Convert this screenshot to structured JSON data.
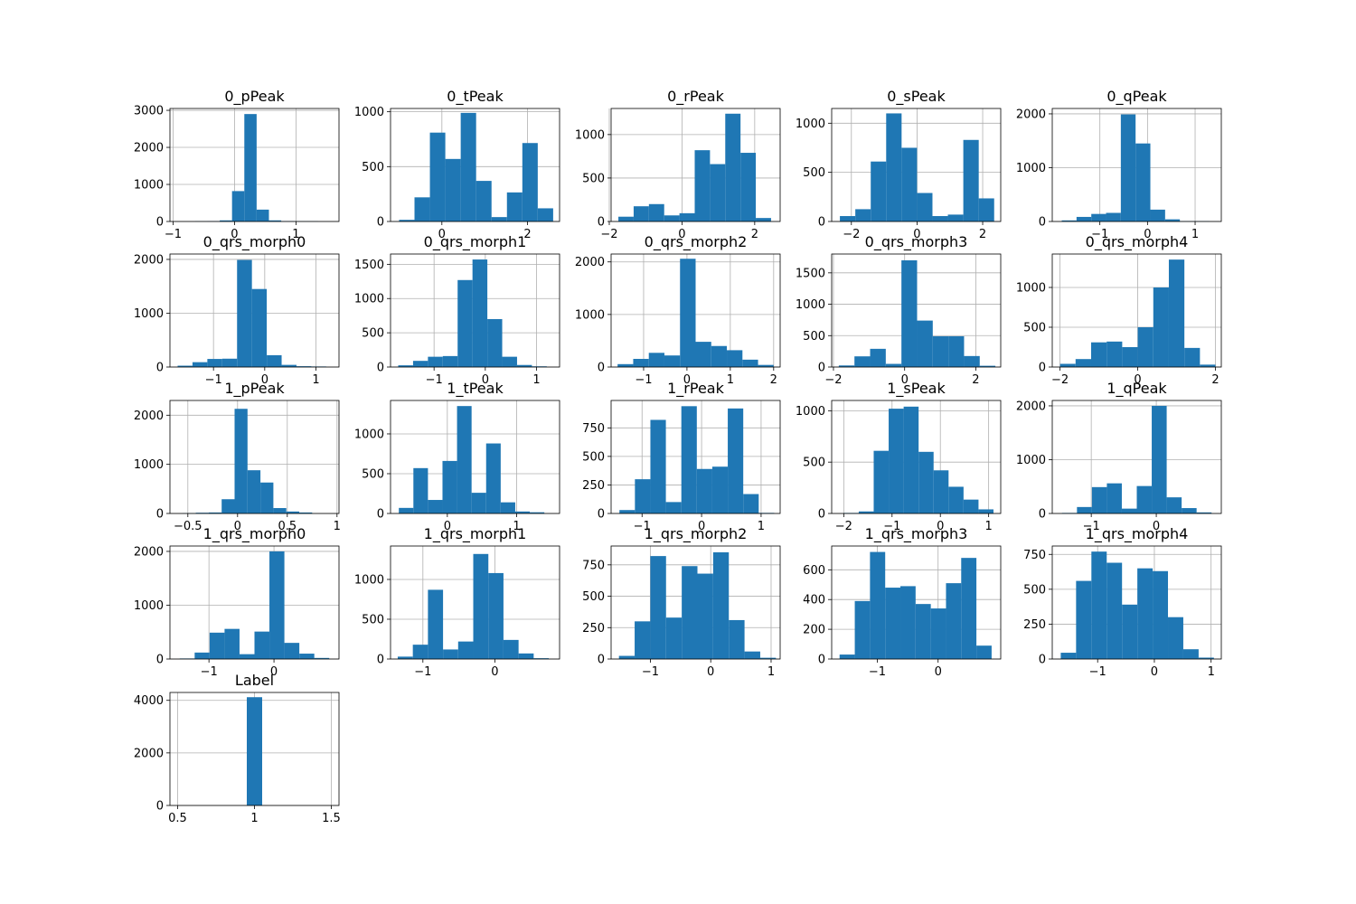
{
  "chart_data": [
    {
      "type": "bar",
      "title": "0_pPeak",
      "xlim": [
        -1.05,
        1.7
      ],
      "xticks": [
        -1,
        0,
        1
      ],
      "ylim": [
        0,
        3050
      ],
      "yticks": [
        0,
        1000,
        2000,
        3000
      ],
      "bin_edges": [
        -0.64,
        -0.44,
        -0.24,
        -0.04,
        0.16,
        0.36,
        0.56,
        0.76,
        0.96,
        1.16,
        1.36
      ],
      "values": [
        5,
        10,
        30,
        820,
        2900,
        320,
        30,
        10,
        5,
        5
      ]
    },
    {
      "type": "bar",
      "title": "0_tPeak",
      "xlim": [
        -1.2,
        2.75
      ],
      "xticks": [
        0,
        2
      ],
      "ylim": [
        0,
        1030
      ],
      "yticks": [
        0,
        500,
        1000
      ],
      "bin_edges": [
        -1.0,
        -0.64,
        -0.28,
        0.08,
        0.44,
        0.8,
        1.16,
        1.52,
        1.88,
        2.24,
        2.6
      ],
      "values": [
        15,
        220,
        810,
        570,
        990,
        370,
        40,
        265,
        715,
        120
      ]
    },
    {
      "type": "bar",
      "title": "0_rPeak",
      "xlim": [
        -1.95,
        2.7
      ],
      "xticks": [
        -2,
        0,
        2
      ],
      "ylim": [
        0,
        1300
      ],
      "yticks": [
        0,
        500,
        1000
      ],
      "bin_edges": [
        -1.75,
        -1.33,
        -0.91,
        -0.49,
        -0.07,
        0.35,
        0.77,
        1.19,
        1.61,
        2.03,
        2.45
      ],
      "values": [
        55,
        175,
        200,
        70,
        95,
        820,
        660,
        1240,
        790,
        40
      ]
    },
    {
      "type": "bar",
      "title": "0_sPeak",
      "xlim": [
        -2.6,
        2.55
      ],
      "xticks": [
        -2,
        0,
        2
      ],
      "ylim": [
        0,
        1150
      ],
      "yticks": [
        0,
        500,
        1000
      ],
      "bin_edges": [
        -2.35,
        -1.88,
        -1.41,
        -0.94,
        -0.47,
        0.0,
        0.47,
        0.94,
        1.41,
        1.88,
        2.35
      ],
      "values": [
        55,
        125,
        610,
        1100,
        750,
        290,
        55,
        70,
        830,
        235
      ]
    },
    {
      "type": "bar",
      "title": "0_qPeak",
      "xlim": [
        -2.0,
        1.55
      ],
      "xticks": [
        -1,
        0,
        1
      ],
      "ylim": [
        0,
        2100
      ],
      "yticks": [
        0,
        1000,
        2000
      ],
      "bin_edges": [
        -1.8,
        -1.49,
        -1.18,
        -0.87,
        -0.56,
        -0.25,
        0.06,
        0.37,
        0.68,
        0.99,
        1.3
      ],
      "values": [
        20,
        85,
        140,
        160,
        1990,
        1450,
        220,
        40,
        5,
        5
      ]
    },
    {
      "type": "bar",
      "title": "0_qrs_morph0",
      "xlim": [
        -1.85,
        1.45
      ],
      "xticks": [
        -1,
        0,
        1
      ],
      "ylim": [
        0,
        2100
      ],
      "yticks": [
        0,
        1000,
        2000
      ],
      "bin_edges": [
        -1.7,
        -1.41,
        -1.12,
        -0.83,
        -0.54,
        -0.25,
        0.04,
        0.33,
        0.62,
        0.91,
        1.2
      ],
      "values": [
        25,
        90,
        150,
        155,
        1990,
        1450,
        220,
        40,
        15,
        10
      ]
    },
    {
      "type": "bar",
      "title": "0_qrs_morph1",
      "xlim": [
        -1.85,
        1.45
      ],
      "xticks": [
        -1,
        0,
        1
      ],
      "ylim": [
        0,
        1650
      ],
      "yticks": [
        0,
        500,
        1000,
        1500
      ],
      "bin_edges": [
        -1.7,
        -1.41,
        -1.12,
        -0.83,
        -0.54,
        -0.25,
        0.04,
        0.33,
        0.62,
        0.91,
        1.2
      ],
      "values": [
        25,
        90,
        150,
        160,
        1270,
        1570,
        700,
        150,
        30,
        10
      ]
    },
    {
      "type": "bar",
      "title": "0_qrs_morph2",
      "xlim": [
        -1.75,
        2.15
      ],
      "xticks": [
        -1,
        0,
        1,
        2
      ],
      "ylim": [
        0,
        2150
      ],
      "yticks": [
        0,
        1000,
        2000
      ],
      "bin_edges": [
        -1.6,
        -1.24,
        -0.88,
        -0.52,
        -0.16,
        0.2,
        0.56,
        0.92,
        1.28,
        1.64,
        2.0
      ],
      "values": [
        55,
        155,
        270,
        220,
        2060,
        480,
        400,
        320,
        140,
        40
      ]
    },
    {
      "type": "bar",
      "title": "0_qrs_morph3",
      "xlim": [
        -2.05,
        2.7
      ],
      "xticks": [
        -2,
        0,
        2
      ],
      "ylim": [
        0,
        1800
      ],
      "yticks": [
        0,
        500,
        1000,
        1500
      ],
      "bin_edges": [
        -1.85,
        -1.41,
        -0.97,
        -0.53,
        -0.09,
        0.35,
        0.79,
        1.23,
        1.67,
        2.11,
        2.55
      ],
      "values": [
        25,
        170,
        290,
        50,
        1700,
        740,
        490,
        490,
        175,
        20
      ]
    },
    {
      "type": "bar",
      "title": "0_qrs_morph4",
      "xlim": [
        -2.2,
        2.15
      ],
      "xticks": [
        -2,
        0,
        2
      ],
      "ylim": [
        0,
        1420
      ],
      "yticks": [
        0,
        500,
        1000
      ],
      "bin_edges": [
        -2.0,
        -1.6,
        -1.2,
        -0.8,
        -0.4,
        0.0,
        0.4,
        0.8,
        1.2,
        1.6,
        2.0
      ],
      "values": [
        40,
        100,
        310,
        320,
        250,
        500,
        1000,
        1350,
        240,
        30
      ]
    },
    {
      "type": "bar",
      "title": "1_pPeak",
      "xlim": [
        -0.68,
        1.02
      ],
      "xticks": [
        -0.5,
        0.0,
        0.5,
        1.0
      ],
      "ylim": [
        0,
        2300
      ],
      "yticks": [
        0,
        1000,
        2000
      ],
      "bin_edges": [
        -0.55,
        -0.42,
        -0.29,
        -0.16,
        -0.03,
        0.1,
        0.23,
        0.36,
        0.49,
        0.62,
        0.75
      ],
      "values": [
        5,
        15,
        20,
        290,
        2130,
        880,
        630,
        110,
        40,
        20
      ]
    },
    {
      "type": "bar",
      "title": "1_tPeak",
      "xlim": [
        -0.82,
        1.62
      ],
      "xticks": [
        0,
        1
      ],
      "ylim": [
        0,
        1420
      ],
      "yticks": [
        0,
        500,
        1000
      ],
      "bin_edges": [
        -0.7,
        -0.49,
        -0.28,
        -0.07,
        0.14,
        0.35,
        0.56,
        0.77,
        0.98,
        1.19,
        1.4
      ],
      "values": [
        70,
        570,
        170,
        660,
        1350,
        260,
        880,
        140,
        25,
        15
      ]
    },
    {
      "type": "bar",
      "title": "1_rPeak",
      "xlim": [
        -1.52,
        1.32
      ],
      "xticks": [
        -1,
        0,
        1
      ],
      "ylim": [
        0,
        990
      ],
      "yticks": [
        0,
        250,
        500,
        750
      ],
      "bin_edges": [
        -1.38,
        -1.12,
        -0.86,
        -0.6,
        -0.34,
        -0.08,
        0.18,
        0.44,
        0.7,
        0.96,
        1.22
      ],
      "values": [
        30,
        300,
        820,
        100,
        940,
        390,
        410,
        920,
        170,
        5
      ]
    },
    {
      "type": "bar",
      "title": "1_sPeak",
      "xlim": [
        -2.25,
        1.25
      ],
      "xticks": [
        -2,
        -1,
        0,
        1
      ],
      "ylim": [
        0,
        1100
      ],
      "yticks": [
        0,
        500,
        1000
      ],
      "bin_edges": [
        -2.0,
        -1.69,
        -1.38,
        -1.07,
        -0.76,
        -0.45,
        -0.14,
        0.17,
        0.48,
        0.79,
        1.1
      ],
      "values": [
        5,
        20,
        610,
        1020,
        1040,
        600,
        420,
        260,
        135,
        40
      ]
    },
    {
      "type": "bar",
      "title": "1_qPeak",
      "xlim": [
        -1.6,
        1.0
      ],
      "xticks": [
        -1,
        0
      ],
      "ylim": [
        0,
        2100
      ],
      "yticks": [
        0,
        1000,
        2000
      ],
      "bin_edges": [
        -1.45,
        -1.22,
        -0.99,
        -0.76,
        -0.53,
        -0.3,
        -0.07,
        0.16,
        0.39,
        0.62,
        0.85
      ],
      "values": [
        10,
        120,
        490,
        560,
        90,
        510,
        2000,
        300,
        100,
        20
      ]
    },
    {
      "type": "bar",
      "title": "1_qrs_morph0",
      "xlim": [
        -1.6,
        1.0
      ],
      "xticks": [
        -1,
        0
      ],
      "ylim": [
        0,
        2100
      ],
      "yticks": [
        0,
        1000,
        2000
      ],
      "bin_edges": [
        -1.45,
        -1.22,
        -0.99,
        -0.76,
        -0.53,
        -0.3,
        -0.07,
        0.16,
        0.39,
        0.62,
        0.85
      ],
      "values": [
        10,
        120,
        490,
        560,
        90,
        510,
        2000,
        300,
        100,
        20
      ]
    },
    {
      "type": "bar",
      "title": "1_qrs_morph1",
      "xlim": [
        -1.45,
        0.9
      ],
      "xticks": [
        -1,
        0
      ],
      "ylim": [
        0,
        1420
      ],
      "yticks": [
        0,
        500,
        1000
      ],
      "bin_edges": [
        -1.35,
        -1.14,
        -0.93,
        -0.72,
        -0.51,
        -0.3,
        -0.09,
        0.12,
        0.33,
        0.54,
        0.75
      ],
      "values": [
        30,
        180,
        870,
        120,
        220,
        1320,
        1080,
        240,
        70,
        10
      ]
    },
    {
      "type": "bar",
      "title": "1_qrs_morph2",
      "xlim": [
        -1.65,
        1.15
      ],
      "xticks": [
        -1,
        0,
        1
      ],
      "ylim": [
        0,
        900
      ],
      "yticks": [
        0,
        250,
        500,
        750
      ],
      "bin_edges": [
        -1.52,
        -1.26,
        -1.0,
        -0.74,
        -0.48,
        -0.22,
        0.04,
        0.3,
        0.56,
        0.82,
        1.08
      ],
      "values": [
        25,
        300,
        820,
        330,
        740,
        680,
        850,
        310,
        60,
        10
      ]
    },
    {
      "type": "bar",
      "title": "1_qrs_morph3",
      "xlim": [
        -1.75,
        1.03
      ],
      "xticks": [
        -1,
        0
      ],
      "ylim": [
        0,
        760
      ],
      "yticks": [
        0,
        200,
        400,
        600
      ],
      "bin_edges": [
        -1.62,
        -1.37,
        -1.12,
        -0.87,
        -0.62,
        -0.37,
        -0.12,
        0.13,
        0.38,
        0.63,
        0.88
      ],
      "values": [
        30,
        390,
        720,
        480,
        490,
        370,
        340,
        510,
        680,
        90
      ]
    },
    {
      "type": "bar",
      "title": "1_qrs_morph4",
      "xlim": [
        -1.8,
        1.18
      ],
      "xticks": [
        -1,
        0,
        1
      ],
      "ylim": [
        0,
        810
      ],
      "yticks": [
        0,
        250,
        500,
        750
      ],
      "bin_edges": [
        -1.65,
        -1.38,
        -1.11,
        -0.84,
        -0.57,
        -0.3,
        -0.03,
        0.24,
        0.51,
        0.78,
        1.05
      ],
      "values": [
        45,
        560,
        770,
        690,
        390,
        650,
        630,
        300,
        70,
        10
      ]
    },
    {
      "type": "bar",
      "title": "Label",
      "xlim": [
        0.45,
        1.55
      ],
      "xticks": [
        0.5,
        1.0,
        1.5
      ],
      "ylim": [
        0,
        4300
      ],
      "yticks": [
        0,
        2000,
        4000
      ],
      "bin_edges": [
        0.95,
        1.05,
        1.15
      ],
      "values": [
        4120,
        0
      ]
    }
  ]
}
